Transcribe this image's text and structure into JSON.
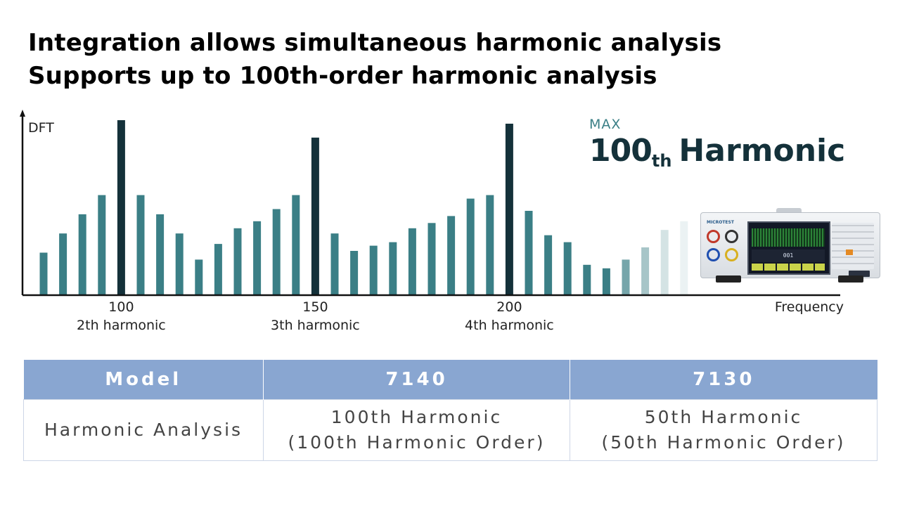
{
  "title_lines": [
    "Integration allows simultaneous harmonic analysis",
    "Supports up to 100th-order harmonic analysis"
  ],
  "chart_data": {
    "type": "bar",
    "ylabel": "DFT",
    "xlabel": "Frequency",
    "ylim": [
      0,
      100
    ],
    "values": [
      24,
      35,
      46,
      57,
      100,
      57,
      46,
      35,
      20,
      29,
      38,
      42,
      49,
      57,
      90,
      35,
      25,
      28,
      30,
      38,
      41,
      45,
      55,
      57,
      98,
      48,
      34,
      30,
      17,
      15,
      20,
      27,
      37,
      42
    ],
    "peak_indices": [
      4,
      14,
      24
    ],
    "fade_indices": [
      30,
      31,
      32,
      33
    ],
    "tick_labels": [
      {
        "bar_index": 4,
        "value": "100",
        "harmonic": "2th harmonic"
      },
      {
        "bar_index": 14,
        "value": "150",
        "harmonic": "3th harmonic"
      },
      {
        "bar_index": 24,
        "value": "200",
        "harmonic": "4th harmonic"
      }
    ],
    "colors": {
      "bar": "#3b7f86",
      "peak": "#14313a",
      "axis": "#111111"
    }
  },
  "max_badge": {
    "label": "MAX",
    "number": "100",
    "suffix": "th",
    "word": "Harmonic"
  },
  "device": {
    "screen_text": "001",
    "brand": "MICROTEST",
    "icon": "power-analyzer-device"
  },
  "spec_table": {
    "headers": [
      "Model",
      "7140",
      "7130"
    ],
    "row_label": "Harmonic Analysis",
    "cells": [
      [
        "100th Harmonic",
        "(100th Harmonic Order)"
      ],
      [
        "50th Harmonic",
        "(50th Harmonic Order)"
      ]
    ],
    "header_bg": "#89a6d1"
  }
}
